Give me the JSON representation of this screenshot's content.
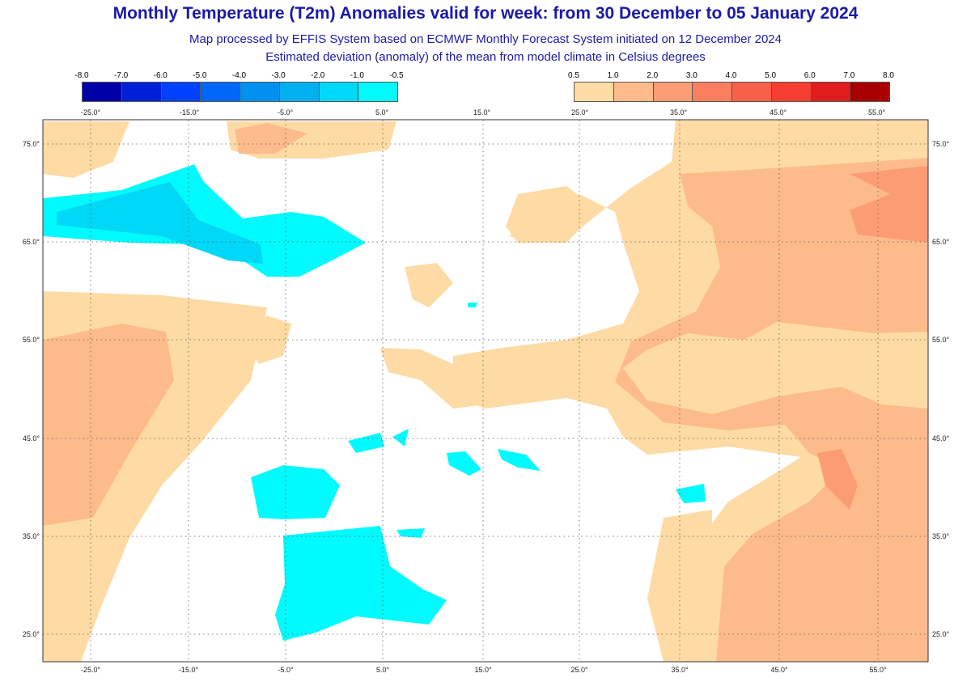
{
  "header": {
    "title": "Monthly Temperature (T2m) Anomalies valid for week: from 30 December to 05 January 2024",
    "subtitle1": "Map processed by EFFIS System based on ECMWF Monthly Forecast System initiated on 12 December 2024",
    "subtitle2": "Estimated deviation (anomaly) of the mean from model climate in Celsius degrees"
  },
  "legend_cold": {
    "labels": [
      "-8.0",
      "-7.0",
      "-6.0",
      "-5.0",
      "-4.0",
      "-3.0",
      "-2.0",
      "-1.0",
      "-0.5"
    ],
    "colors": [
      "#0000a8",
      "#0020d8",
      "#0040ff",
      "#0068f8",
      "#0090f0",
      "#00b0f0",
      "#00d8f8",
      "#00fbff"
    ]
  },
  "legend_warm": {
    "labels": [
      "0.5",
      "1.0",
      "2.0",
      "3.0",
      "4.0",
      "5.0",
      "6.0",
      "7.0",
      "8.0"
    ],
    "colors": [
      "#fedba4",
      "#fdbb8b",
      "#fc9c75",
      "#fb7f5f",
      "#f9604a",
      "#f53e31",
      "#e01c1c",
      "#a80000"
    ]
  },
  "axes": {
    "lon_labels": [
      "-25.0°",
      "-15.0°",
      "-5.0°",
      "5.0°",
      "15.0°",
      "25.0°",
      "35.0°",
      "45.0°",
      "55.0°"
    ],
    "lat_labels": [
      "75.0°",
      "65.0°",
      "55.0°",
      "45.0°",
      "35.0°",
      "25.0°"
    ]
  }
}
